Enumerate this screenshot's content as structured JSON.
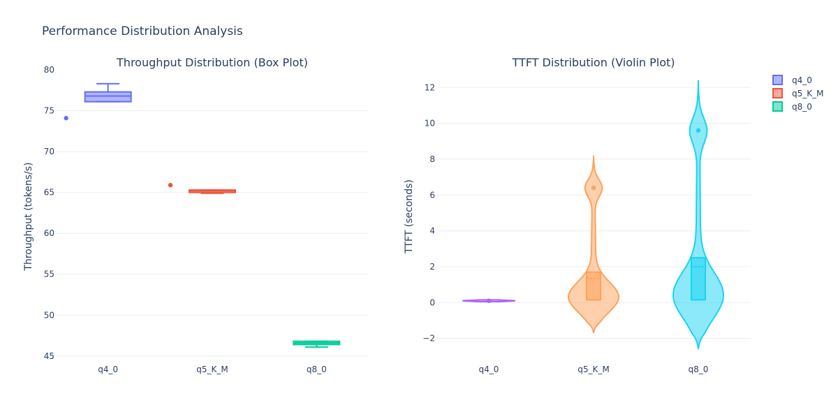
{
  "title": "Performance Distribution Analysis",
  "legend": [
    {
      "label": "q4_0",
      "color": "#636efa"
    },
    {
      "label": "q5_K_M",
      "color": "#ef553b"
    },
    {
      "label": "q8_0",
      "color": "#00cc96"
    }
  ],
  "chart_data": [
    {
      "type": "box",
      "title": "Throughput Distribution (Box Plot)",
      "xlabel": "",
      "ylabel": "Throughput (tokens/s)",
      "categories": [
        "q4_0",
        "q5_K_M",
        "q8_0"
      ],
      "ylim": [
        44.3,
        80
      ],
      "yticks": [
        45,
        50,
        55,
        60,
        65,
        70,
        75,
        80
      ],
      "grid": true,
      "series": [
        {
          "name": "q4_0",
          "color": "#636efa",
          "min": 76.1,
          "q1": 76.1,
          "median": 76.8,
          "q3": 77.3,
          "max": 78.3,
          "outliers": [
            74.1
          ]
        },
        {
          "name": "q5_K_M",
          "color": "#ef553b",
          "min": 64.9,
          "q1": 65.0,
          "median": 65.2,
          "q3": 65.3,
          "max": 65.3,
          "outliers": [
            65.9
          ]
        },
        {
          "name": "q8_0",
          "color": "#00cc96",
          "min": 46.1,
          "q1": 46.4,
          "median": 46.6,
          "q3": 46.8,
          "max": 46.8,
          "outliers": []
        }
      ]
    },
    {
      "type": "violin",
      "title": "TTFT Distribution (Violin Plot)",
      "xlabel": "",
      "ylabel": "TTFT (seconds)",
      "categories": [
        "q4_0",
        "q5_K_M",
        "q8_0"
      ],
      "ylim": [
        -2.6,
        12.4
      ],
      "yticks": [
        -2,
        0,
        2,
        4,
        6,
        8,
        10,
        12
      ],
      "ytick_labels": [
        "−2",
        "0",
        "2",
        "4",
        "6",
        "8",
        "10",
        "12"
      ],
      "grid": true,
      "series": [
        {
          "name": "q4_0",
          "color": "#ab63fa",
          "kde_min": 0.05,
          "kde_max": 0.15,
          "q1": 0.08,
          "median": 0.1,
          "q3": 0.12,
          "mean": 0.1,
          "points": [
            0.1
          ]
        },
        {
          "name": "q5_K_M",
          "color": "#ffa15a",
          "kde_min": -1.7,
          "kde_max": 8.2,
          "q1": 0.15,
          "median": 0.3,
          "q3": 1.7,
          "mean": 1.35,
          "points": [
            6.4
          ]
        },
        {
          "name": "q8_0",
          "color": "#19d3f3",
          "kde_min": -2.6,
          "kde_max": 12.4,
          "q1": 0.15,
          "median": 0.4,
          "q3": 2.5,
          "mean": 2.0,
          "points": [
            9.6
          ]
        }
      ]
    }
  ]
}
